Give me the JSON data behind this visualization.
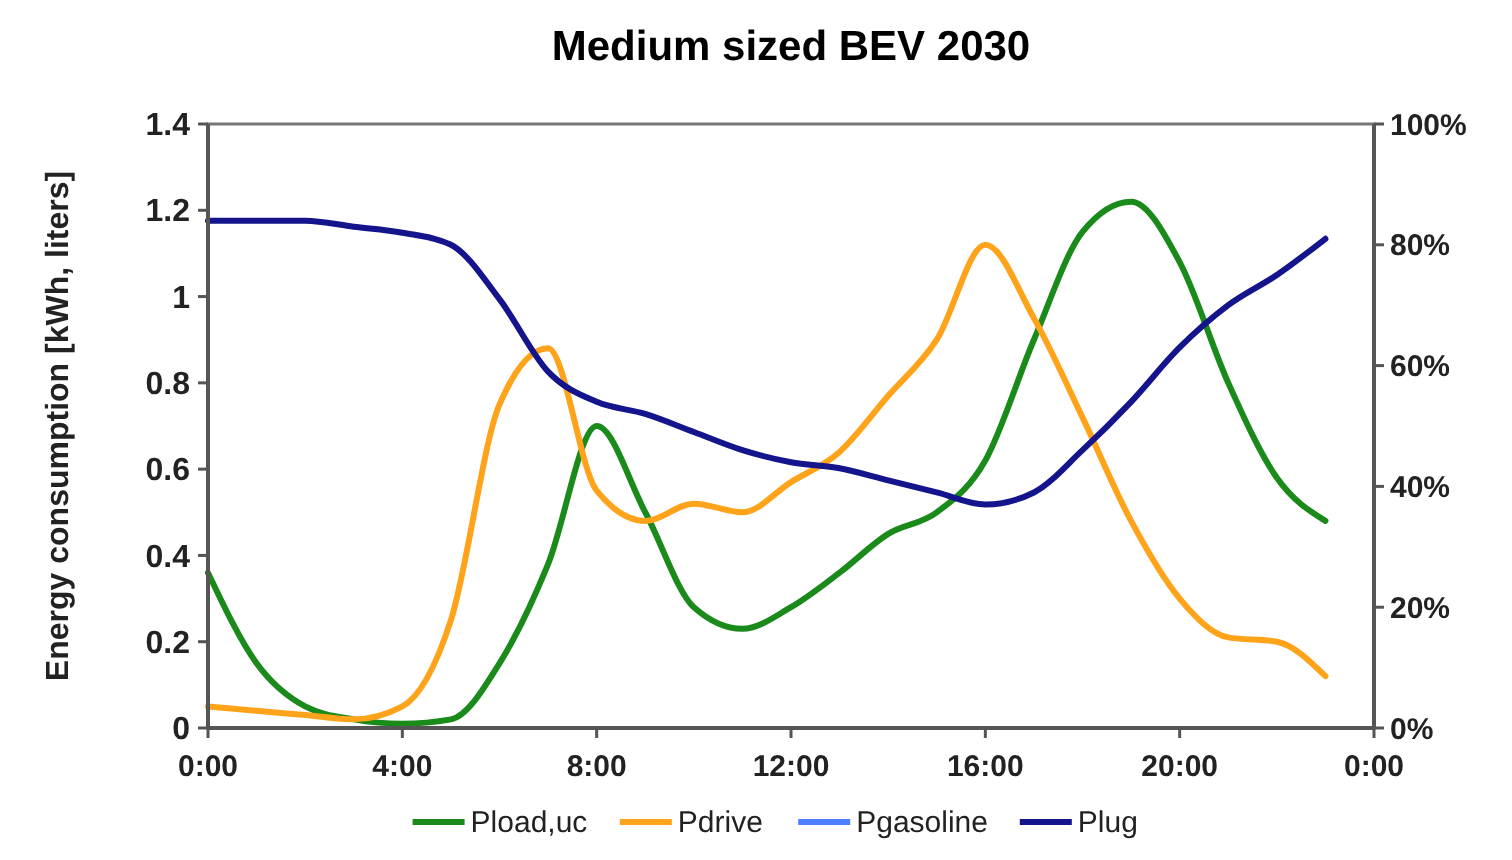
{
  "chart_data": {
    "type": "line",
    "title": "Medium sized BEV 2030",
    "ylabel": "Energy consumption [kWh, liters]",
    "x": [
      0,
      1,
      2,
      3,
      4,
      5,
      6,
      7,
      8,
      9,
      10,
      11,
      12,
      13,
      14,
      15,
      16,
      17,
      18,
      19,
      20,
      21,
      22,
      23
    ],
    "xlim": [
      0,
      24
    ],
    "xticks": [
      {
        "value": 0,
        "label": "0:00"
      },
      {
        "value": 4,
        "label": "4:00"
      },
      {
        "value": 8,
        "label": "8:00"
      },
      {
        "value": 12,
        "label": "12:00"
      },
      {
        "value": 16,
        "label": "16:00"
      },
      {
        "value": 20,
        "label": "20:00"
      },
      {
        "value": 24,
        "label": "0:00"
      }
    ],
    "ylim": [
      0,
      1.4
    ],
    "yticks": [
      0,
      0.2,
      0.4,
      0.6,
      0.8,
      1,
      1.2,
      1.4
    ],
    "y2lim": [
      0,
      100
    ],
    "y2ticks": [
      {
        "value": 0,
        "label": "0%"
      },
      {
        "value": 20,
        "label": "20%"
      },
      {
        "value": 40,
        "label": "40%"
      },
      {
        "value": 60,
        "label": "60%"
      },
      {
        "value": 80,
        "label": "80%"
      },
      {
        "value": 100,
        "label": "100%"
      }
    ],
    "grid": false,
    "legend": "bottom",
    "marker": "none",
    "line_style": "solid",
    "series": [
      {
        "name": "Pload,uc",
        "color": "#1a8a1a",
        "values": [
          0.36,
          0.15,
          0.05,
          0.02,
          0.01,
          0.02,
          0.15,
          0.38,
          0.7,
          0.5,
          0.28,
          0.23,
          0.28,
          0.36,
          0.45,
          0.5,
          0.62,
          0.9,
          1.15,
          1.22,
          1.08,
          0.8,
          0.58,
          0.48
        ]
      },
      {
        "name": "Pdrive",
        "color": "#ffa31a",
        "values": [
          0.05,
          0.04,
          0.03,
          0.02,
          0.05,
          0.25,
          0.75,
          0.88,
          0.55,
          0.48,
          0.52,
          0.5,
          0.57,
          0.64,
          0.77,
          0.9,
          1.12,
          0.95,
          0.72,
          0.48,
          0.3,
          0.21,
          0.2,
          0.12
        ]
      },
      {
        "name": "Pgasoline",
        "color": "#4d7fff",
        "values": [
          null,
          null,
          null,
          null,
          null,
          null,
          null,
          null,
          null,
          null,
          null,
          null,
          null,
          null,
          null,
          null,
          null,
          null,
          null,
          null,
          null,
          null,
          null,
          null
        ]
      },
      {
        "name": "Plug",
        "color": "#14148c",
        "axis": "y2",
        "values": [
          84,
          84,
          84,
          83,
          82,
          80,
          71,
          59,
          54,
          52,
          49,
          46,
          44,
          43,
          41,
          39,
          37,
          39,
          46,
          54,
          63,
          70,
          75,
          81
        ]
      }
    ]
  }
}
